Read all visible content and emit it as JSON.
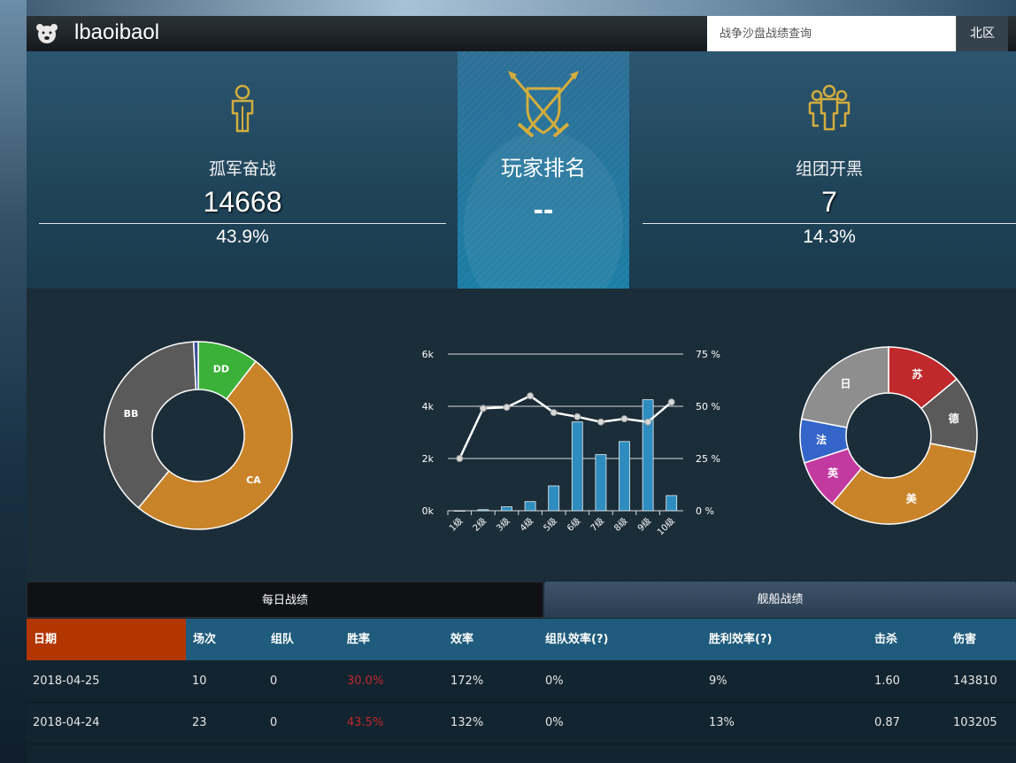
{
  "header": {
    "username": "lbaoibaol",
    "search_placeholder": "战争沙盘战绩查询",
    "region_label": "北区"
  },
  "stats": {
    "solo": {
      "label": "孤军奋战",
      "value": "14668",
      "percent": "43.9%"
    },
    "rank": {
      "label": "玩家排名",
      "value": "--"
    },
    "team": {
      "label": "组团开黑",
      "value": "7",
      "percent": "14.3%"
    }
  },
  "colors": {
    "accent_gold": "#d4ad3c",
    "ship_dd": "#3cb13a",
    "ship_ca": "#c9842a",
    "ship_bb": "#5a5a5a",
    "ship_cv": "#3a4f9a",
    "win_rate_red": "#c1272d",
    "header_row": "#1f5b7c",
    "date_header": "#b33500"
  },
  "chart_data": [
    {
      "type": "pie",
      "style": "donut",
      "labels": [
        "DD",
        "CA",
        "BB",
        ""
      ],
      "values": [
        10.5,
        50.5,
        38.2,
        0.8
      ],
      "colors": [
        "#3cb13a",
        "#c9842a",
        "#5a5a5a",
        "#3a4f9a"
      ]
    },
    {
      "type": "bar",
      "categories": [
        "1级",
        "2级",
        "3级",
        "4级",
        "5级",
        "6级",
        "7级",
        "8级",
        "9级",
        "10级"
      ],
      "series": [
        {
          "type": "bar",
          "axis": "left",
          "values": [
            0,
            40,
            150,
            350,
            950,
            3400,
            2150,
            2650,
            4250,
            580
          ]
        },
        {
          "type": "line",
          "axis": "right",
          "values": [
            25,
            49,
            49.5,
            55,
            47,
            45,
            42.5,
            44,
            42.5,
            52
          ]
        }
      ],
      "ylim_left": [
        0,
        6000
      ],
      "yticks_left": [
        "0k",
        "2k",
        "4k",
        "6k"
      ],
      "ylim_right": [
        0,
        75
      ],
      "yticks_right": [
        "0 %",
        "25 %",
        "50 %",
        "75 %"
      ],
      "grid": true
    },
    {
      "type": "pie",
      "style": "donut",
      "labels": [
        "苏",
        "德",
        "美",
        "英",
        "法",
        "日"
      ],
      "values": [
        14,
        14,
        33,
        9,
        8,
        22
      ],
      "colors": [
        "#c0292b",
        "#5a5a5a",
        "#c9842a",
        "#c23aa0",
        "#3465c9",
        "#8e8e8e"
      ]
    }
  ],
  "tabs": {
    "daily": "每日战绩",
    "ships": "舰船战绩"
  },
  "table": {
    "columns": [
      "日期",
      "场次",
      "组队",
      "胜率",
      "效率",
      "组队效率(?)",
      "胜利效率(?)",
      "击杀",
      "伤害"
    ],
    "rows": [
      [
        "2018-04-25",
        "10",
        "0",
        "30.0%",
        "172%",
        "0%",
        "9%",
        "1.60",
        "143810"
      ],
      [
        "2018-04-24",
        "23",
        "0",
        "43.5%",
        "132%",
        "0%",
        "13%",
        "0.87",
        "103205"
      ]
    ]
  }
}
